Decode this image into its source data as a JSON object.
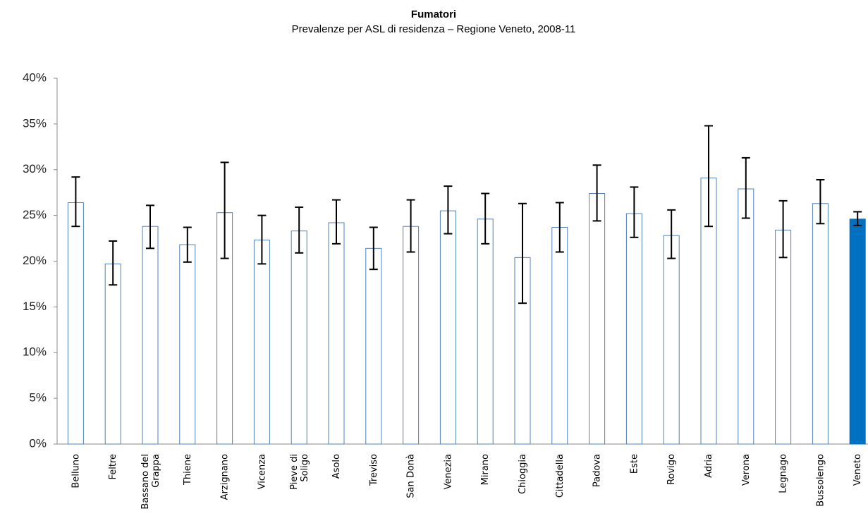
{
  "chart_data": {
    "type": "bar",
    "title": "Fumatori",
    "subtitle": "Prevalenze per ASL di residenza – Regione Veneto,  2008-11",
    "categories": [
      "Belluno",
      "Feltre",
      "Bassano del\nGrappa",
      "Thiene",
      "Arzignano",
      "Vicenza",
      "Pieve di\nSoligo",
      "Asolo",
      "Treviso",
      "San Donà",
      "Venezia",
      "Mirano",
      "Chioggia",
      "Cittadella",
      "Padova",
      "Este",
      "Rovigo",
      "Adria",
      "Verona",
      "Legnago",
      "Bussolengo",
      "Veneto"
    ],
    "values": [
      26.4,
      19.7,
      23.8,
      21.8,
      25.3,
      22.3,
      23.3,
      24.2,
      21.4,
      23.8,
      25.5,
      24.6,
      20.4,
      23.7,
      27.4,
      25.2,
      22.8,
      29.1,
      27.9,
      23.4,
      26.3,
      24.6
    ],
    "lower": [
      23.8,
      17.4,
      21.4,
      19.9,
      20.3,
      19.7,
      20.9,
      21.9,
      19.1,
      21.0,
      23.0,
      21.9,
      15.4,
      21.0,
      24.4,
      22.6,
      20.3,
      23.8,
      24.7,
      20.4,
      24.1,
      23.9
    ],
    "upper": [
      29.2,
      22.2,
      26.1,
      23.7,
      30.8,
      25.0,
      25.9,
      26.7,
      23.7,
      26.7,
      28.2,
      27.4,
      26.3,
      26.4,
      30.5,
      28.1,
      25.6,
      34.8,
      31.3,
      26.6,
      28.9,
      25.4
    ],
    "color": "#4f81bd",
    "highlight_index": 21,
    "highlight_color": "#0070c0",
    "ylim": [
      0,
      40
    ],
    "yticks": [
      {
        "value": 0,
        "label": "0%"
      },
      {
        "value": 5,
        "label": "5%"
      },
      {
        "value": 10,
        "label": "10%"
      },
      {
        "value": 15,
        "label": "15%"
      },
      {
        "value": 20,
        "label": "20%"
      },
      {
        "value": 25,
        "label": "25%"
      },
      {
        "value": 30,
        "label": "30%"
      },
      {
        "value": 35,
        "label": "35%"
      },
      {
        "value": 40,
        "label": "40%"
      }
    ],
    "grid": false
  }
}
